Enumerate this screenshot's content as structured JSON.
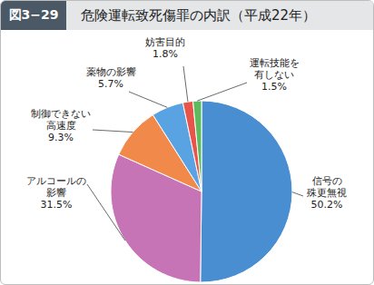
{
  "chart_data": {
    "type": "pie",
    "figure_label": "図3−29",
    "title": "危険運転致死傷罪の内訳（平成22年）",
    "categories": [
      "信号の\n殊更無視",
      "アルコールの\n影響",
      "制御できない\n高速度",
      "薬物の影響",
      "妨害目的",
      "運転技能を\n有しない"
    ],
    "values": [
      50.2,
      31.5,
      9.3,
      5.7,
      1.8,
      1.5
    ],
    "value_labels": [
      "50.2%",
      "31.5%",
      "9.3%",
      "5.7%",
      "1.8%",
      "1.5%"
    ],
    "colors": [
      "#4a8ed2",
      "#c774b6",
      "#f0894a",
      "#5aa3e2",
      "#e8544a",
      "#5dbb5d"
    ],
    "data_labels": true
  }
}
